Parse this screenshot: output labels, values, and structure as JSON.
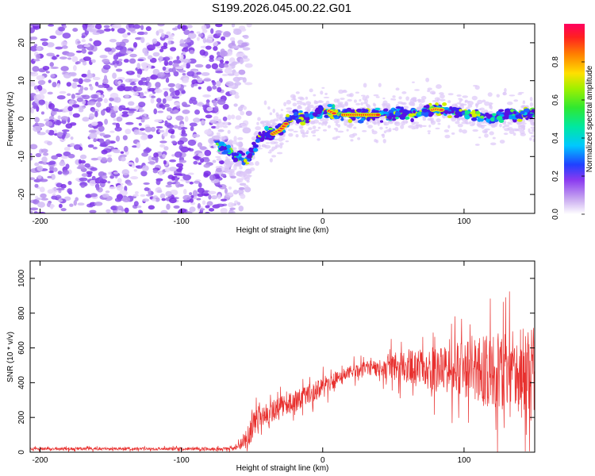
{
  "chart_data": [
    {
      "type": "heatmap",
      "title": "S199.2026.045.00.22.G01",
      "xlabel": "Height of straight line (km)",
      "ylabel": "Frequency (Hz)",
      "xlim": [
        -207,
        150
      ],
      "ylim": [
        -25,
        25
      ],
      "xticks": [
        -200,
        -100,
        0,
        100
      ],
      "xtick_labels": [
        "-200",
        "-100",
        "0",
        "100"
      ],
      "yticks": [
        -20,
        -10,
        0,
        10,
        20
      ],
      "ytick_labels": [
        "-20",
        "-10",
        "0",
        "10",
        "20"
      ],
      "ridge": {
        "x": [
          -75,
          -70,
          -65,
          -60,
          -55,
          -50,
          -45,
          -40,
          -35,
          -30,
          -25,
          -20,
          -15,
          -10,
          -5,
          0,
          5,
          10,
          20,
          30,
          40,
          50,
          60,
          70,
          80,
          90,
          100,
          110,
          120,
          130,
          140,
          150
        ],
        "y": [
          -6,
          -8,
          -9,
          -10,
          -11,
          -9,
          -5,
          -4,
          -4,
          -3,
          -1,
          1,
          0,
          1,
          1,
          2,
          2,
          1,
          1,
          1,
          1,
          1.2,
          1.3,
          1.5,
          2.5,
          2,
          1.5,
          1,
          0,
          1,
          1,
          1.5
        ]
      },
      "noise_region_x": [
        -207,
        -60
      ],
      "colorbar": {
        "label": "Normalized spectral amplitude",
        "range": [
          0,
          1
        ],
        "ticks": [
          0.0,
          0.2,
          0.4,
          0.6,
          0.8
        ],
        "tick_labels": [
          "0.0",
          "0.2",
          "0.4",
          "0.6",
          "0.8"
        ]
      }
    },
    {
      "type": "line",
      "xlabel": "Height of straight line (km)",
      "ylabel": "SNR (10 * v/v)",
      "xlim": [
        -207,
        150
      ],
      "ylim": [
        0,
        1100
      ],
      "xticks": [
        -200,
        -100,
        0,
        100
      ],
      "xtick_labels": [
        "-200",
        "-100",
        "0",
        "100"
      ],
      "yticks": [
        0,
        200,
        400,
        600,
        800,
        1000
      ],
      "ytick_labels": [
        "0",
        "200",
        "400",
        "600",
        "800",
        "1000"
      ],
      "color": "#e8302e",
      "envelope": {
        "x": [
          -207,
          -150,
          -100,
          -70,
          -60,
          -55,
          -50,
          -45,
          -40,
          -30,
          -20,
          -10,
          0,
          10,
          20,
          30,
          40,
          50,
          60,
          70,
          80,
          90,
          100,
          110,
          120,
          130,
          140,
          150
        ],
        "mean": [
          20,
          20,
          20,
          20,
          30,
          60,
          150,
          200,
          220,
          260,
          290,
          330,
          380,
          420,
          460,
          480,
          480,
          490,
          500,
          480,
          470,
          470,
          480,
          470,
          460,
          460,
          470,
          500
        ],
        "spread": [
          8,
          8,
          8,
          8,
          15,
          60,
          80,
          70,
          60,
          60,
          60,
          60,
          60,
          50,
          40,
          40,
          50,
          80,
          100,
          110,
          130,
          140,
          170,
          190,
          220,
          230,
          240,
          260
        ]
      }
    }
  ]
}
